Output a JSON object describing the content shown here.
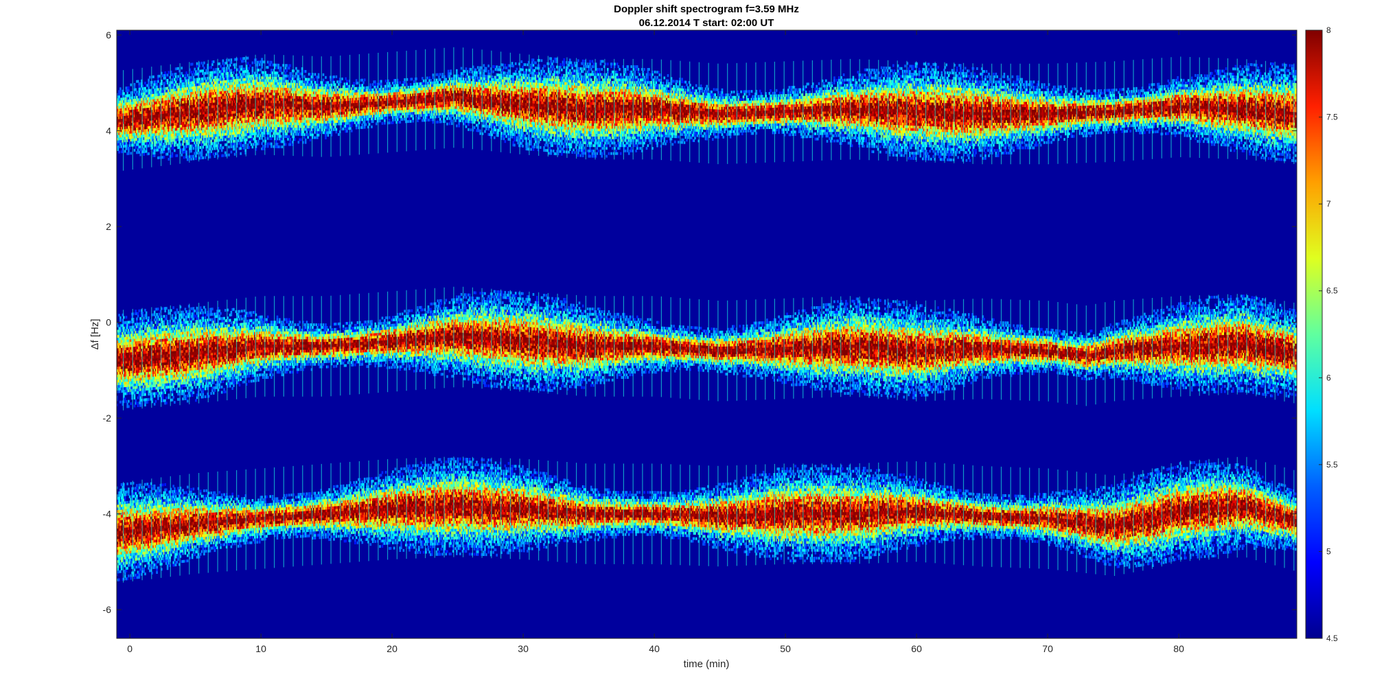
{
  "chart_data": {
    "type": "heatmap",
    "title": "Doppler shift spectrogram f=3.59 MHz",
    "subtitle": "06.12.2014   T start: 02:00 UT",
    "xlabel": "time (min)",
    "ylabel": "Δf [Hz]",
    "xlim": [
      -1,
      89
    ],
    "ylim": [
      -6.6,
      6.1
    ],
    "x_ticks": [
      0,
      10,
      20,
      30,
      40,
      50,
      60,
      70,
      80
    ],
    "y_ticks": [
      -6,
      -4,
      -2,
      0,
      2,
      4,
      6
    ],
    "colorbar": {
      "range": [
        4.5,
        8
      ],
      "ticks": [
        4.5,
        5,
        5.5,
        6,
        6.5,
        7,
        7.5,
        8
      ],
      "colormap": "jet"
    },
    "background_level": 4.6,
    "traces": [
      {
        "name": "",
        "points": [
          [
            -1,
            4.2
          ],
          [
            5,
            4.4
          ],
          [
            10,
            4.55
          ],
          [
            15,
            4.5
          ],
          [
            20,
            4.6
          ],
          [
            25,
            4.7
          ],
          [
            30,
            4.55
          ],
          [
            35,
            4.45
          ],
          [
            40,
            4.45
          ],
          [
            45,
            4.35
          ],
          [
            50,
            4.4
          ],
          [
            55,
            4.45
          ],
          [
            60,
            4.4
          ],
          [
            65,
            4.35
          ],
          [
            70,
            4.35
          ],
          [
            75,
            4.4
          ],
          [
            80,
            4.5
          ],
          [
            85,
            4.45
          ],
          [
            89,
            4.35
          ]
        ]
      },
      {
        "name": "",
        "points": [
          [
            -1,
            -0.8
          ],
          [
            5,
            -0.65
          ],
          [
            10,
            -0.5
          ],
          [
            15,
            -0.5
          ],
          [
            20,
            -0.4
          ],
          [
            25,
            -0.3
          ],
          [
            30,
            -0.4
          ],
          [
            35,
            -0.5
          ],
          [
            40,
            -0.5
          ],
          [
            45,
            -0.6
          ],
          [
            50,
            -0.55
          ],
          [
            55,
            -0.5
          ],
          [
            60,
            -0.6
          ],
          [
            65,
            -0.55
          ],
          [
            70,
            -0.6
          ],
          [
            73,
            -0.7
          ],
          [
            75,
            -0.6
          ],
          [
            80,
            -0.5
          ],
          [
            85,
            -0.45
          ],
          [
            89,
            -0.65
          ]
        ]
      },
      {
        "name": "",
        "points": [
          [
            -1,
            -4.4
          ],
          [
            5,
            -4.2
          ],
          [
            10,
            -4.1
          ],
          [
            15,
            -4.0
          ],
          [
            20,
            -3.9
          ],
          [
            25,
            -3.85
          ],
          [
            30,
            -3.9
          ],
          [
            35,
            -4.0
          ],
          [
            40,
            -4.0
          ],
          [
            45,
            -4.05
          ],
          [
            50,
            -4.0
          ],
          [
            55,
            -4.0
          ],
          [
            60,
            -3.95
          ],
          [
            65,
            -4.05
          ],
          [
            70,
            -4.1
          ],
          [
            75,
            -4.25
          ],
          [
            78,
            -4.1
          ],
          [
            80,
            -3.95
          ],
          [
            85,
            -3.85
          ],
          [
            89,
            -4.15
          ]
        ]
      }
    ],
    "colors": {
      "background": "#ffffff",
      "axis": "#262626"
    }
  }
}
